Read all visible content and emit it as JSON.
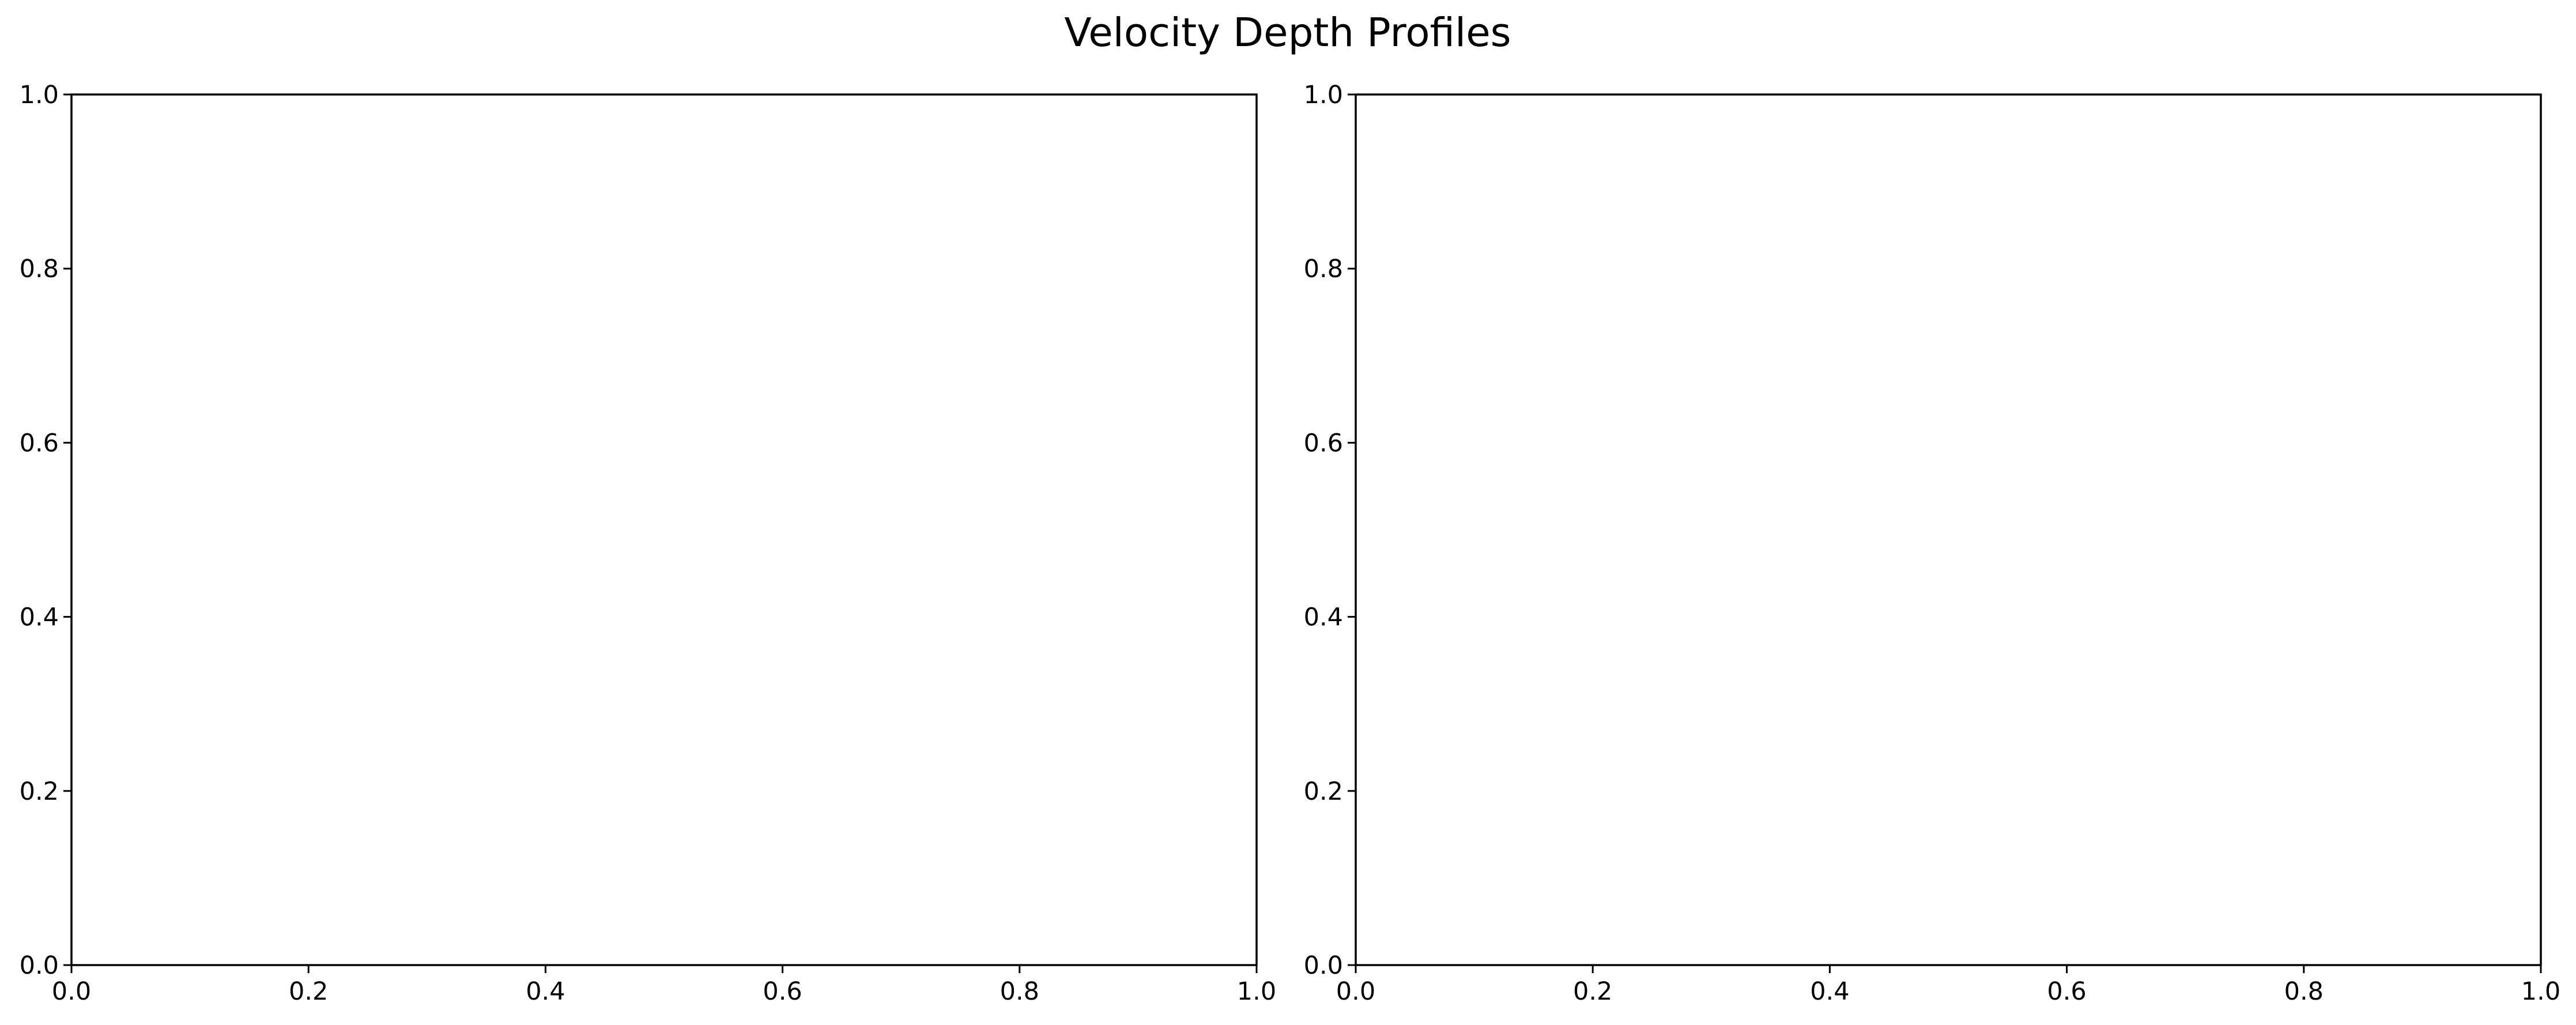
{
  "figure": {
    "title": "Velocity Depth Profiles"
  },
  "chart_data": [
    {
      "type": "line",
      "title": "",
      "xlabel": "",
      "ylabel": "",
      "xlim": [
        0,
        1
      ],
      "ylim": [
        0,
        1
      ],
      "xticks": [
        0.0,
        0.2,
        0.4,
        0.6,
        0.8,
        1.0
      ],
      "yticks": [
        0.0,
        0.2,
        0.4,
        0.6,
        0.8,
        1.0
      ],
      "xtick_labels": [
        "0.0",
        "0.2",
        "0.4",
        "0.6",
        "0.8",
        "1.0"
      ],
      "ytick_labels": [
        "0.0",
        "0.2",
        "0.4",
        "0.6",
        "0.8",
        "1.0"
      ],
      "grid": false,
      "series": []
    },
    {
      "type": "line",
      "title": "",
      "xlabel": "",
      "ylabel": "",
      "xlim": [
        0,
        1
      ],
      "ylim": [
        0,
        1
      ],
      "xticks": [
        0.0,
        0.2,
        0.4,
        0.6,
        0.8,
        1.0
      ],
      "yticks": [
        0.0,
        0.2,
        0.4,
        0.6,
        0.8,
        1.0
      ],
      "xtick_labels": [
        "0.0",
        "0.2",
        "0.4",
        "0.6",
        "0.8",
        "1.0"
      ],
      "ytick_labels": [
        "0.0",
        "0.2",
        "0.4",
        "0.6",
        "0.8",
        "1.0"
      ],
      "grid": false,
      "series": []
    }
  ]
}
